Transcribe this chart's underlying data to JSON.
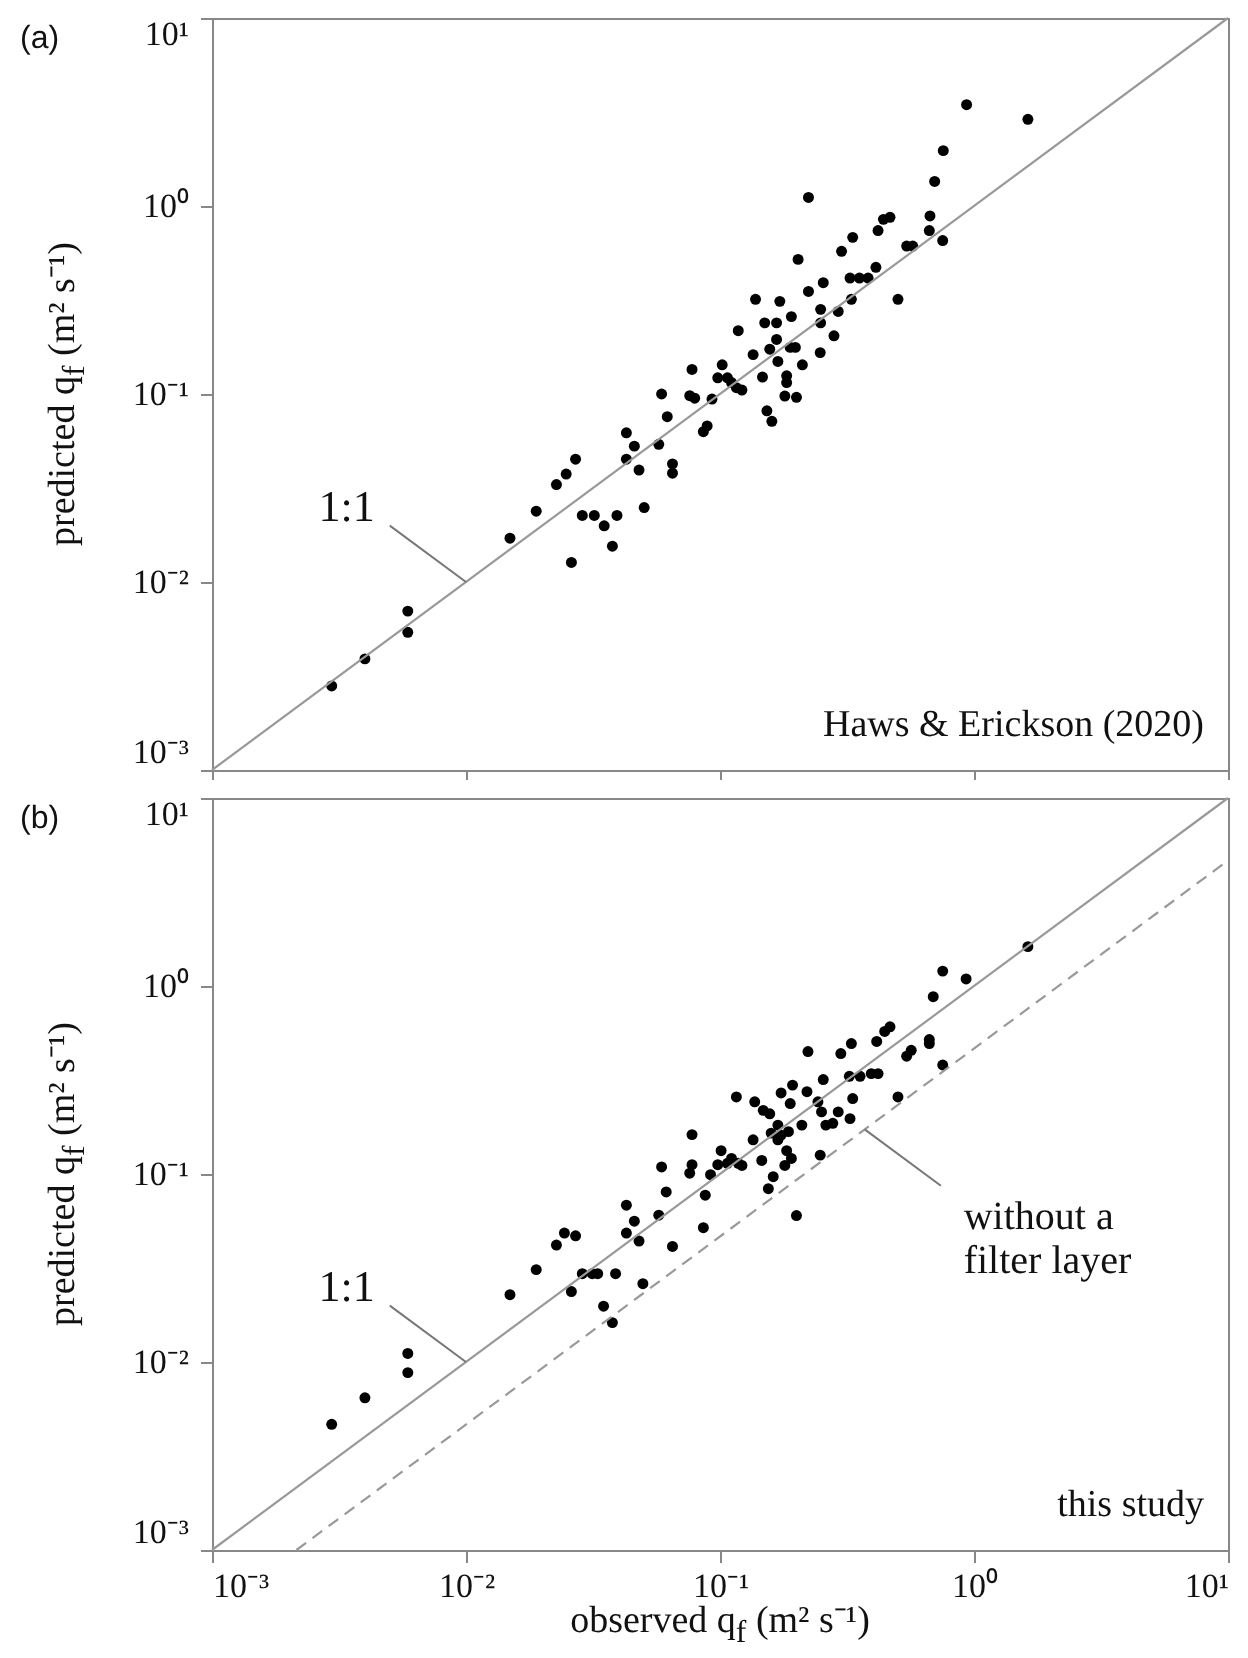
{
  "chart_data": [
    {
      "type": "scatter",
      "title": "(a)",
      "ylabel": "predicted q$_{f}$ (m² s⁻¹)",
      "annotations": [
        "Haws & Erickson (2020)"
      ],
      "log": "xy",
      "xlim": [
        0.001,
        10
      ],
      "ylim": [
        0.001,
        10
      ],
      "xticks": [
        {
          "value": 0.001,
          "label": null
        },
        {
          "value": 0.01,
          "label": null
        },
        {
          "value": 0.1,
          "label": null
        },
        {
          "value": 1,
          "label": null
        },
        {
          "value": 10,
          "label": null
        }
      ],
      "yticks": [
        {
          "value": 0.001,
          "label": "10⁻³"
        },
        {
          "value": 0.01,
          "label": "10⁻²"
        },
        {
          "value": 0.1,
          "label": "10⁻¹"
        },
        {
          "value": 1,
          "label": "10⁰"
        },
        {
          "value": 10,
          "label": "10¹"
        }
      ],
      "tick_labels": "y",
      "series": [
        {
          "marker": "circle",
          "color": "#000000",
          "x": [
            0.00296,
            0.004,
            0.0059,
            0.0059,
            0.0149,
            0.0189,
            0.0227,
            0.0248,
            0.027,
            0.026,
            0.0287,
            0.032,
            0.035,
            0.0377,
            0.0393,
            0.0428,
            0.0428,
            0.046,
            0.048,
            0.0503,
            0.0574,
            0.0589,
            0.062,
            0.065,
            0.065,
            0.0776,
            0.076,
            0.0795,
            0.086,
            0.089,
            0.093,
            0.098,
            0.102,
            0.107,
            0.111,
            0.116,
            0.122,
            0.118,
            0.135,
            0.138,
            0.147,
            0.15,
            0.153,
            0.16,
            0.157,
            0.167,
            0.167,
            0.169,
            0.172,
            0.18,
            0.183,
            0.183,
            0.191,
            0.189,
            0.198,
            0.2,
            0.203,
            0.211,
            0.223,
            0.223,
            0.249,
            0.249,
            0.248,
            0.255,
            0.281,
            0.292,
            0.301,
            0.325,
            0.329,
            0.333,
            0.354,
            0.383,
            0.411,
            0.419,
            0.44,
            0.467,
            0.502,
            0.543,
            0.574,
            0.667,
            0.671,
            0.7,
            0.753,
            0.757,
            0.935,
            1.63
          ],
          "values": [
            0.0028,
            0.0039,
            0.0054,
            0.007,
            0.0171,
            0.0238,
            0.033,
            0.0375,
            0.045,
            0.0127,
            0.0226,
            0.0226,
            0.0199,
            0.0155,
            0.0226,
            0.0622,
            0.045,
            0.0528,
            0.0394,
            0.0249,
            0.054,
            0.1,
            0.0757,
            0.0425,
            0.0379,
            0.135,
            0.098,
            0.095,
            0.063,
            0.0676,
            0.094,
            0.122,
            0.143,
            0.122,
            0.115,
            0.108,
            0.105,
            0.217,
            0.162,
            0.319,
            0.123,
            0.239,
            0.0814,
            0.0716,
            0.173,
            0.239,
            0.195,
            0.149,
            0.311,
            0.0975,
            0.125,
            0.115,
            0.258,
            0.177,
            0.177,
            0.096,
            0.52,
            0.143,
            1.11,
            0.351,
            0.282,
            0.239,
            0.166,
            0.391,
            0.204,
            0.275,
            0.574,
            0.414,
            0.319,
            0.681,
            0.414,
            0.414,
            0.472,
            0.74,
            0.849,
            0.871,
            0.319,
            0.612,
            0.612,
            0.74,
            0.885,
            1.35,
            0.655,
            1.97,
            3.46,
            2.89
          ]
        },
        {
          "type": "line",
          "name": "1:1",
          "color": "#999999",
          "line_style": "solid",
          "x": [
            0.001,
            10
          ],
          "values": [
            0.001,
            10
          ]
        }
      ]
    },
    {
      "type": "scatter",
      "title": "(b)",
      "xlabel": "observed q$_{f}$ (m² s⁻¹)",
      "ylabel": "predicted q$_{f}$ (m² s⁻¹)",
      "annotations": [
        "this study"
      ],
      "log": "xy",
      "xlim": [
        0.001,
        10
      ],
      "ylim": [
        0.001,
        10
      ],
      "xticks": [
        {
          "value": 0.001,
          "label": "10⁻³"
        },
        {
          "value": 0.01,
          "label": "10⁻²"
        },
        {
          "value": 0.1,
          "label": "10⁻¹"
        },
        {
          "value": 1,
          "label": "10⁰"
        },
        {
          "value": 10,
          "label": "10¹"
        }
      ],
      "yticks": [
        {
          "value": 0.001,
          "label": "10⁻³"
        },
        {
          "value": 0.01,
          "label": "10⁻²"
        },
        {
          "value": 0.1,
          "label": "10⁻¹"
        },
        {
          "value": 1,
          "label": "10⁰"
        },
        {
          "value": 10,
          "label": "10¹"
        }
      ],
      "series": [
        {
          "marker": "circle",
          "color": "#000000",
          "x": [
            0.00296,
            0.004,
            0.0059,
            0.0059,
            0.0149,
            0.0189,
            0.0227,
            0.0244,
            0.027,
            0.026,
            0.0287,
            0.0314,
            0.033,
            0.0348,
            0.0377,
            0.0388,
            0.0428,
            0.0428,
            0.046,
            0.048,
            0.0497,
            0.0574,
            0.0589,
            0.0614,
            0.065,
            0.0776,
            0.0776,
            0.076,
            0.0875,
            0.086,
            0.0918,
            0.098,
            0.101,
            0.107,
            0.111,
            0.118,
            0.122,
            0.116,
            0.135,
            0.137,
            0.146,
            0.148,
            0.155,
            0.157,
            0.159,
            0.162,
            0.169,
            0.169,
            0.174,
            0.174,
            0.18,
            0.183,
            0.186,
            0.189,
            0.191,
            0.193,
            0.2,
            0.21,
            0.22,
            0.222,
            0.248,
            0.243,
            0.251,
            0.255,
            0.261,
            0.278,
            0.292,
            0.299,
            0.323,
            0.325,
            0.329,
            0.333,
            0.356,
            0.394,
            0.419,
            0.414,
            0.445,
            0.467,
            0.502,
            0.543,
            0.566,
            0.667,
            0.667,
            0.691,
            0.753,
            0.753,
            0.931,
            1.63
          ],
          "values": [
            0.00466,
            0.00645,
            0.00878,
            0.0111,
            0.0228,
            0.031,
            0.0419,
            0.0485,
            0.0469,
            0.0237,
            0.0295,
            0.0295,
            0.0295,
            0.0198,
            0.0162,
            0.0295,
            0.0682,
            0.0485,
            0.0561,
            0.044,
            0.0261,
            0.0604,
            0.109,
            0.0803,
            0.0412,
            0.162,
            0.112,
            0.101,
            0.0771,
            0.0518,
            0.0991,
            0.112,
            0.133,
            0.114,
            0.121,
            0.114,
            0.111,
            0.257,
            0.152,
            0.242,
            0.118,
            0.218,
            0.0835,
            0.209,
            0.165,
            0.0968,
            0.152,
            0.182,
            0.27,
            0.161,
            0.111,
            0.133,
            0.168,
            0.237,
            0.121,
            0.297,
            0.0601,
            0.182,
            0.274,
            0.448,
            0.126,
            0.242,
            0.214,
            0.318,
            0.182,
            0.186,
            0.214,
            0.437,
            0.331,
            0.197,
            0.494,
            0.252,
            0.331,
            0.342,
            0.342,
            0.507,
            0.573,
            0.607,
            0.257,
            0.423,
            0.455,
            0.519,
            0.494,
            0.877,
            1.2,
            0.38,
            1.09,
            1.62
          ]
        },
        {
          "type": "line",
          "name": "1:1",
          "color": "#999999",
          "line_style": "solid",
          "x": [
            0.001,
            10
          ],
          "values": [
            0.001,
            10
          ]
        },
        {
          "type": "line",
          "name": "without a filter layer",
          "color": "#999999",
          "line_style": "dashed",
          "x": [
            0.00215,
            10
          ],
          "values": [
            0.001,
            4.65
          ]
        }
      ]
    }
  ]
}
